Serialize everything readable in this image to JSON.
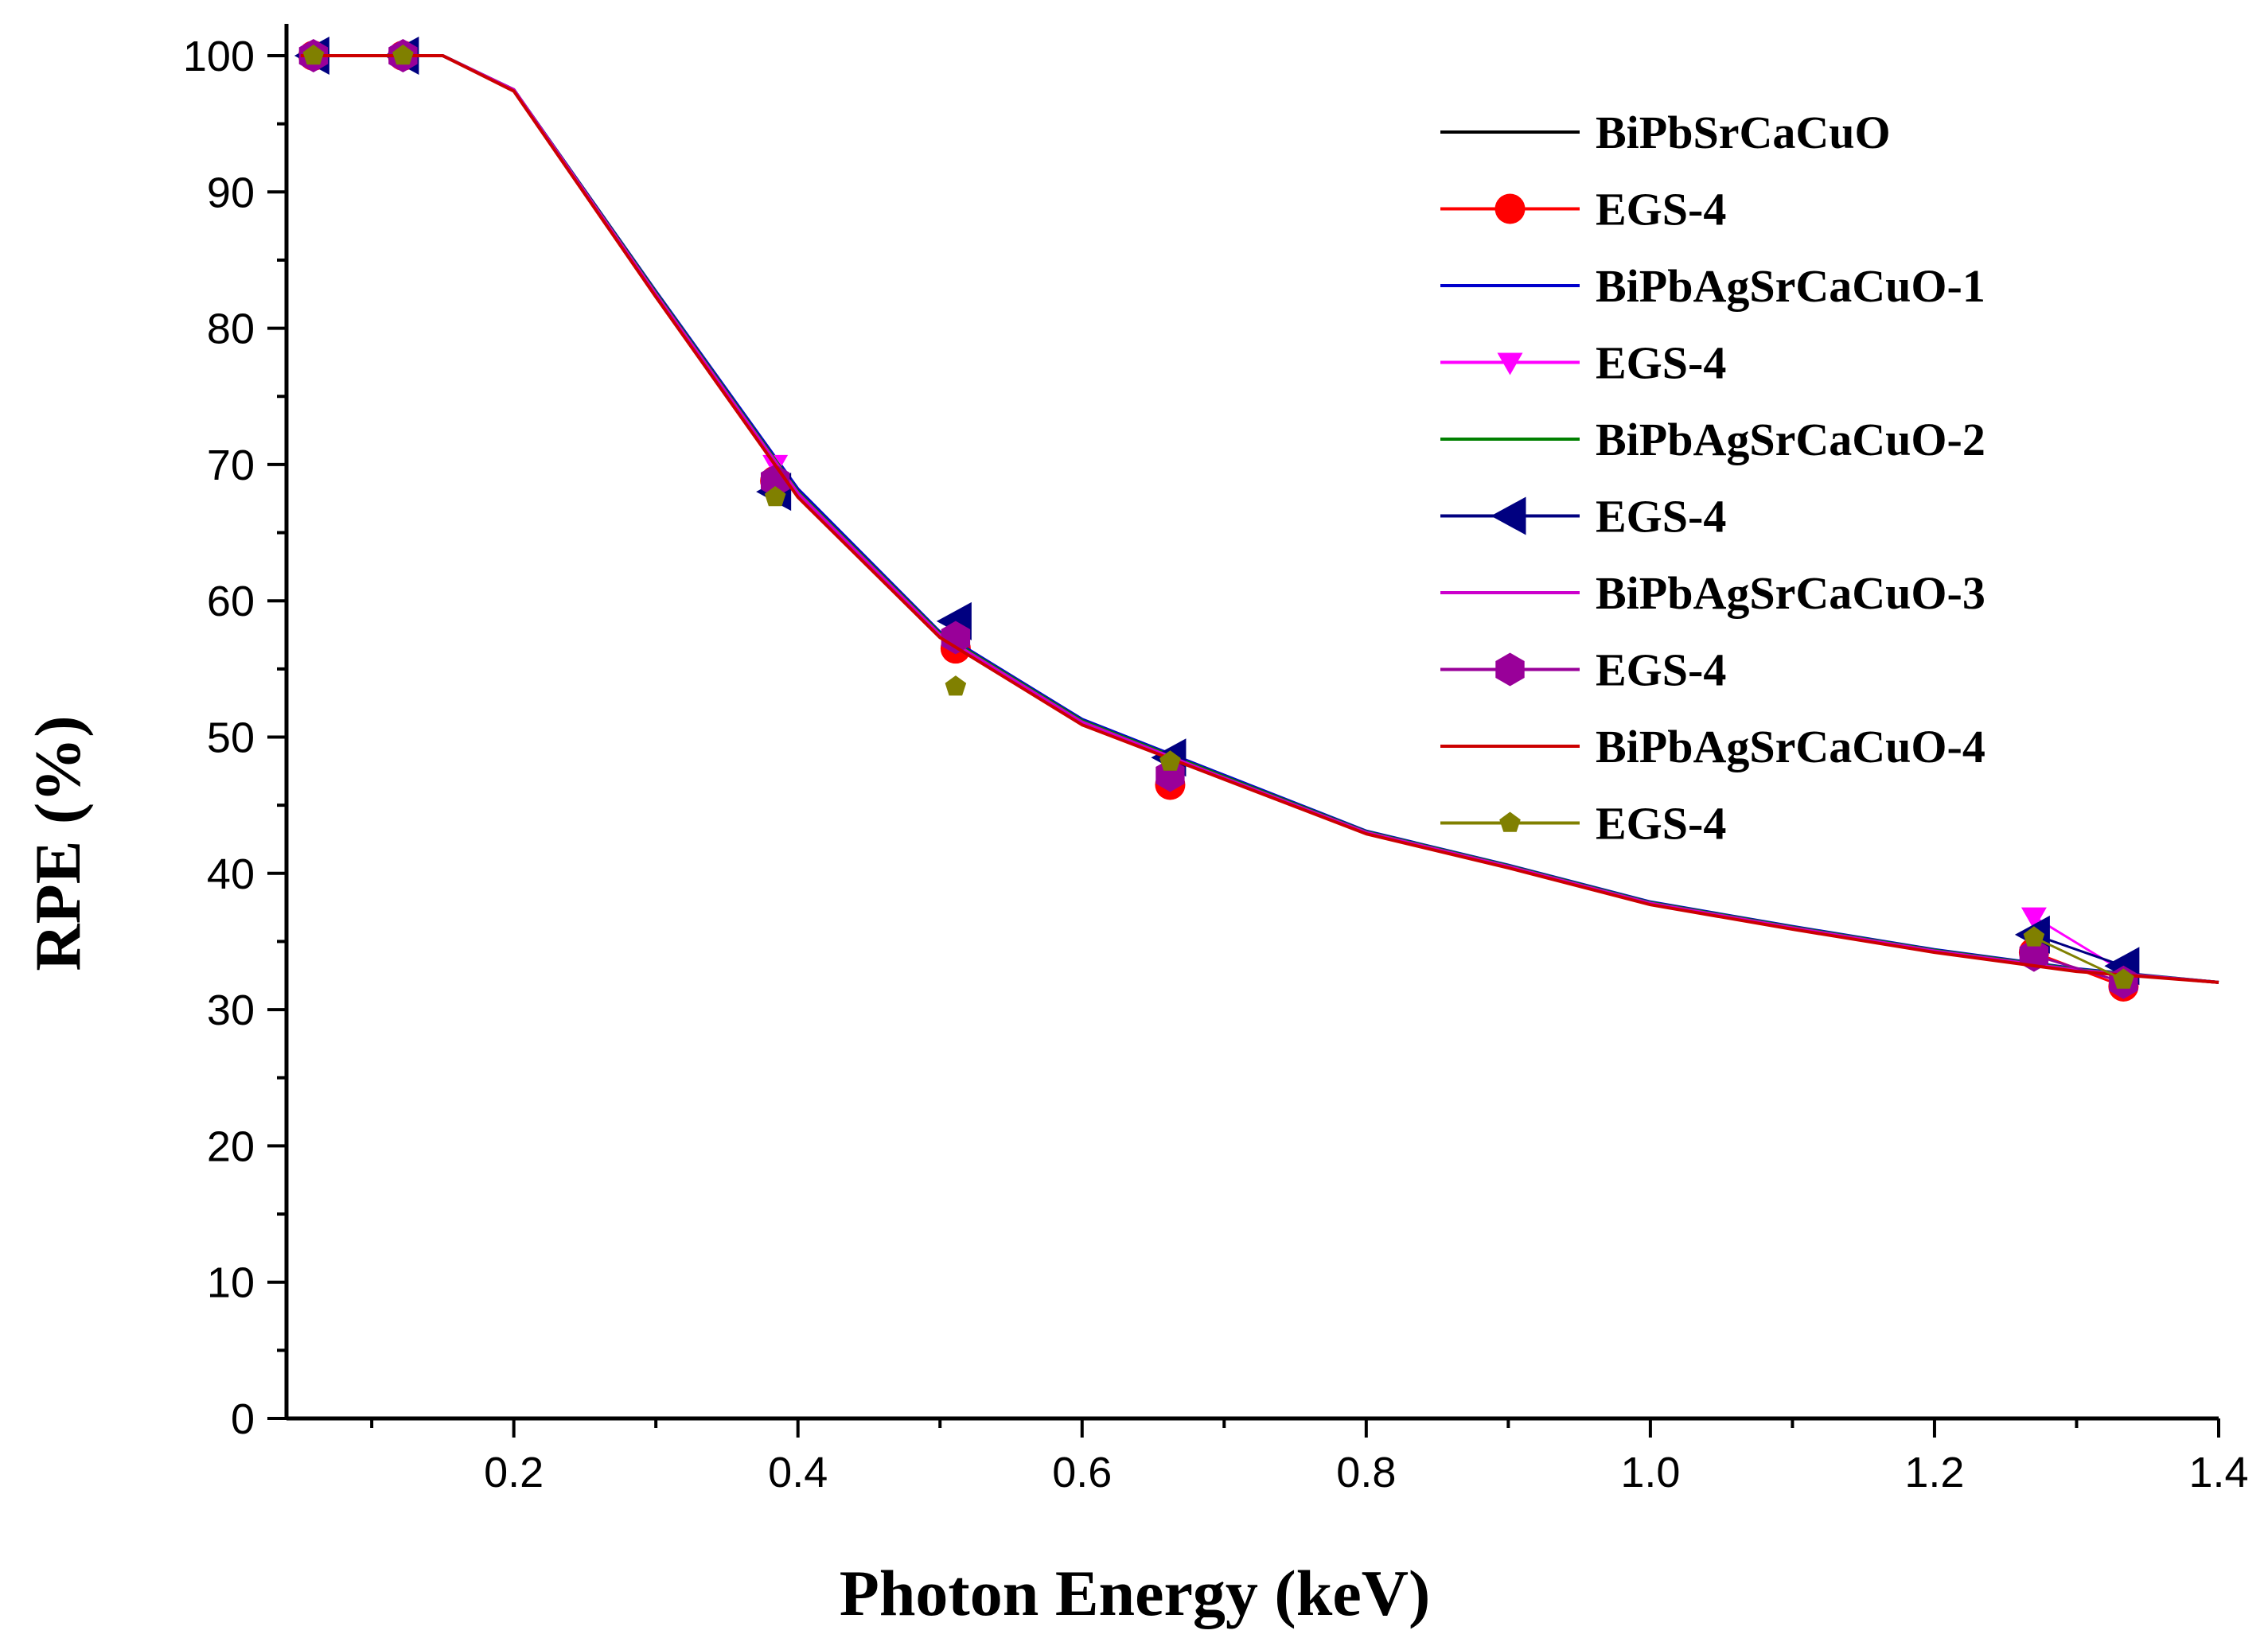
{
  "chart_data": {
    "type": "line",
    "title": "",
    "xlabel": "Photon Energy (keV)",
    "ylabel": "RPE (%)",
    "xlim": [
      0.04,
      1.4
    ],
    "ylim": [
      0,
      100
    ],
    "x_ticks": [
      0.2,
      0.4,
      0.6,
      0.8,
      1.0,
      1.2,
      1.4
    ],
    "x_tick_labels": [
      "0.2",
      "0.4",
      "0.6",
      "0.8",
      "1.0",
      "1.2",
      "1.4"
    ],
    "y_ticks": [
      0,
      10,
      20,
      30,
      40,
      50,
      60,
      70,
      80,
      90,
      100
    ],
    "y_tick_labels": [
      "0",
      "10",
      "20",
      "30",
      "40",
      "50",
      "60",
      "70",
      "80",
      "90",
      "100"
    ],
    "grid": false,
    "legend_position": "top-right",
    "series": [
      {
        "name": "BiPbSrCaCuO",
        "kind": "line",
        "color": "#000000",
        "x": [
          0.05,
          0.15,
          0.2,
          0.3,
          0.4,
          0.5,
          0.6,
          0.7,
          0.8,
          0.9,
          1.0,
          1.1,
          1.2,
          1.3,
          1.4
        ],
        "y": [
          100,
          100,
          97.5,
          82.5,
          67.8,
          57.5,
          51,
          47,
          43,
          40.5,
          37.8,
          36,
          34.3,
          32.9,
          32
        ]
      },
      {
        "name": "EGS-4",
        "kind": "markers",
        "marker": "circle",
        "color": "#ff0000",
        "x": [
          0.059,
          0.122,
          0.384,
          0.511,
          0.662,
          1.27,
          1.333
        ],
        "y": [
          100,
          100,
          68.8,
          56.5,
          46.5,
          34.2,
          31.7
        ]
      },
      {
        "name": "BiPbAgSrCaCuO-1",
        "kind": "line",
        "color": "#0000cc",
        "x": [
          0.05,
          0.15,
          0.2,
          0.3,
          0.4,
          0.5,
          0.6,
          0.7,
          0.8,
          0.9,
          1.0,
          1.1,
          1.2,
          1.3,
          1.4
        ],
        "y": [
          100,
          100,
          97.5,
          82.7,
          68.2,
          57.7,
          51.3,
          47.2,
          43.1,
          40.6,
          37.9,
          36.1,
          34.4,
          33,
          32
        ]
      },
      {
        "name": "EGS-4",
        "kind": "markers",
        "marker": "triangle-down",
        "color": "#ff00ff",
        "x": [
          0.059,
          0.122,
          0.384,
          0.511,
          0.662,
          1.27,
          1.333
        ],
        "y": [
          100,
          100,
          70,
          58,
          48,
          36.8,
          32.8
        ]
      },
      {
        "name": "BiPbAgSrCaCuO-2",
        "kind": "line",
        "color": "#008000",
        "x": [
          0.05,
          0.15,
          0.2,
          0.3,
          0.4,
          0.5,
          0.6,
          0.7,
          0.8,
          0.9,
          1.0,
          1.1,
          1.2,
          1.3,
          1.4
        ],
        "y": [
          100,
          100,
          97.5,
          82.6,
          68,
          57.6,
          51.2,
          47.1,
          43.05,
          40.55,
          37.85,
          36.05,
          34.35,
          32.95,
          32
        ]
      },
      {
        "name": "EGS-4",
        "kind": "markers",
        "marker": "triangle-left",
        "color": "#000080",
        "x": [
          0.059,
          0.122,
          0.384,
          0.511,
          0.662,
          1.27,
          1.333
        ],
        "y": [
          100,
          100,
          68,
          58.5,
          48.5,
          35.5,
          33.2
        ]
      },
      {
        "name": "BiPbAgSrCaCuO-3",
        "kind": "line",
        "color": "#cc00cc",
        "x": [
          0.05,
          0.15,
          0.2,
          0.3,
          0.4,
          0.5,
          0.6,
          0.7,
          0.8,
          0.9,
          1.0,
          1.1,
          1.2,
          1.3,
          1.4
        ],
        "y": [
          100,
          100,
          97.5,
          82.5,
          67.9,
          57.5,
          51.1,
          47,
          43,
          40.5,
          37.8,
          36,
          34.3,
          32.9,
          32
        ]
      },
      {
        "name": "EGS-4",
        "kind": "markers",
        "marker": "hexagon",
        "color": "#990099",
        "x": [
          0.059,
          0.122,
          0.384,
          0.511,
          0.662,
          1.27,
          1.333
        ],
        "y": [
          100,
          100,
          68.8,
          57.3,
          47.2,
          34,
          32
        ]
      },
      {
        "name": "BiPbAgSrCaCuO-4",
        "kind": "line",
        "color": "#cc0000",
        "x": [
          0.05,
          0.15,
          0.2,
          0.3,
          0.4,
          0.5,
          0.6,
          0.7,
          0.8,
          0.9,
          1.0,
          1.1,
          1.2,
          1.3,
          1.4
        ],
        "y": [
          100,
          100,
          97.4,
          82.3,
          67.6,
          57.3,
          50.9,
          46.9,
          42.9,
          40.4,
          37.7,
          35.9,
          34.2,
          32.8,
          32
        ]
      },
      {
        "name": "EGS-4",
        "kind": "markers",
        "marker": "pentagon",
        "color": "#808000",
        "x": [
          0.059,
          0.122,
          0.384,
          0.511,
          0.662,
          1.27,
          1.333
        ],
        "y": [
          100,
          100,
          67.6,
          53.7,
          48.2,
          35.3,
          32.2
        ]
      }
    ]
  }
}
